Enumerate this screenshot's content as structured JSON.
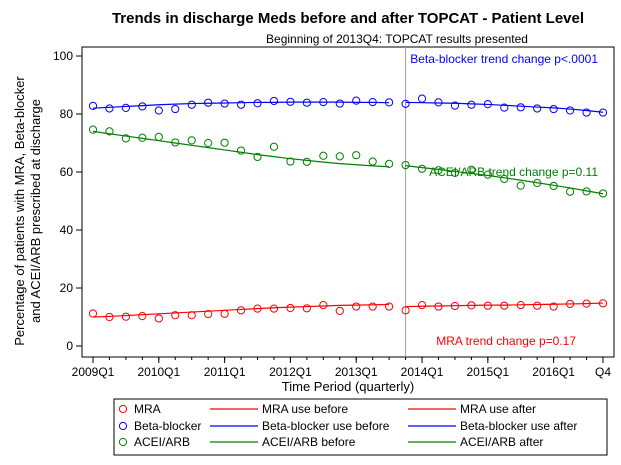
{
  "chart_data": {
    "type": "scatter",
    "title": "Trends in discharge Meds before and after TOPCAT - Patient Level",
    "subtitle": "Beginning of 2013Q4: TOPCAT results presented",
    "xlabel": "Time Period (quarterly)",
    "ylabel_line1": "Percentage of patients with MRA, Beta-blocker",
    "ylabel_line2": "and ACEI/ARB prescribed at discharge",
    "ylim": [
      0,
      100
    ],
    "yticks": [
      0,
      20,
      40,
      60,
      80,
      100
    ],
    "x_categories": [
      "2009Q1",
      "2009Q2",
      "2009Q3",
      "2009Q4",
      "2010Q1",
      "2010Q2",
      "2010Q3",
      "2010Q4",
      "2011Q1",
      "2011Q2",
      "2011Q3",
      "2011Q4",
      "2012Q1",
      "2012Q2",
      "2012Q3",
      "2012Q4",
      "2013Q1",
      "2013Q2",
      "2013Q3",
      "2013Q4",
      "2014Q1",
      "2014Q2",
      "2014Q3",
      "2014Q4",
      "2015Q1",
      "2015Q2",
      "2015Q3",
      "2015Q4",
      "2016Q1",
      "2016Q2",
      "2016Q3",
      "2016Q4"
    ],
    "xtick_labels": [
      {
        "category": "2009Q1",
        "label": "2009Q1"
      },
      {
        "category": "2010Q1",
        "label": "2010Q1"
      },
      {
        "category": "2011Q1",
        "label": "2011Q1"
      },
      {
        "category": "2012Q1",
        "label": "2012Q1"
      },
      {
        "category": "2013Q1",
        "label": "2013Q1"
      },
      {
        "category": "2014Q1",
        "label": "2014Q1"
      },
      {
        "category": "2015Q1",
        "label": "2015Q1"
      },
      {
        "category": "2016Q1",
        "label": "2016Q1"
      },
      {
        "category": "2016Q4",
        "label": "Q4"
      }
    ],
    "reference_line": {
      "category": "2013Q4",
      "color": "#a0a0a0"
    },
    "grid": false,
    "legend_position": "bottom",
    "series": [
      {
        "name": "MRA",
        "color": "#ff0000",
        "values": [
          11.2,
          10.0,
          10.1,
          10.3,
          9.5,
          10.6,
          10.6,
          11.0,
          11.1,
          12.3,
          12.9,
          12.9,
          13.1,
          13.0,
          14.1,
          12.1,
          13.6,
          13.6,
          13.6,
          12.3,
          14.1,
          13.6,
          13.8,
          14.0,
          13.9,
          13.9,
          14.1,
          13.9,
          13.6,
          14.5,
          14.6,
          14.7
        ],
        "trend_before": [
          10.0,
          10.2,
          10.5,
          10.8,
          11.1,
          11.4,
          11.7,
          12.0,
          12.3,
          12.6,
          12.9,
          13.2,
          13.4,
          13.6,
          13.8,
          14.0,
          14.1,
          14.2,
          14.3
        ],
        "trend_after": [
          13.6,
          13.7,
          13.8,
          13.9,
          14.0,
          14.1,
          14.1,
          14.2,
          14.3,
          14.4,
          14.5,
          14.6,
          14.8
        ]
      },
      {
        "name": "Beta-blocker",
        "color": "#0000ff",
        "values": [
          82.8,
          81.9,
          82.1,
          82.6,
          81.2,
          81.7,
          83.2,
          83.9,
          83.6,
          83.2,
          83.7,
          84.5,
          84.2,
          83.9,
          84.1,
          83.6,
          84.6,
          84.1,
          84.0,
          83.5,
          85.3,
          84.0,
          82.9,
          83.2,
          83.4,
          82.2,
          82.3,
          81.9,
          81.7,
          81.2,
          80.5,
          80.5
        ],
        "trend_before": [
          82.0,
          82.3,
          82.6,
          82.9,
          83.2,
          83.4,
          83.6,
          83.7,
          83.8,
          83.9,
          84.0,
          84.0,
          84.1,
          84.1,
          84.1,
          84.1,
          84.0,
          84.0,
          83.9
        ],
        "trend_after": [
          84.0,
          83.9,
          83.8,
          83.7,
          83.5,
          83.3,
          83.0,
          82.7,
          82.4,
          82.1,
          81.7,
          81.2,
          80.6
        ]
      },
      {
        "name": "ACEI/ARB",
        "color": "#008000",
        "values": [
          74.6,
          74.0,
          71.6,
          71.8,
          72.1,
          70.2,
          70.9,
          70.0,
          70.1,
          67.4,
          65.2,
          68.7,
          63.6,
          63.5,
          65.6,
          65.4,
          65.8,
          63.6,
          62.8,
          62.4,
          61.1,
          60.6,
          59.7,
          60.8,
          59.1,
          57.6,
          55.3,
          56.2,
          55.2,
          53.2,
          53.3,
          52.6
        ],
        "trend_before": [
          74.0,
          73.2,
          72.4,
          71.6,
          70.8,
          70.0,
          69.2,
          68.4,
          67.6,
          66.8,
          66.0,
          65.3,
          64.6,
          64.0,
          63.4,
          62.9,
          62.5,
          62.1,
          61.8
        ],
        "trend_after": [
          62.2,
          61.5,
          60.9,
          60.2,
          59.5,
          58.8,
          58.0,
          57.2,
          56.3,
          55.4,
          54.5,
          53.5,
          52.5
        ]
      }
    ],
    "annotations": [
      {
        "text": "Beta-blocker trend change p<.0001",
        "color": "#0000ff"
      },
      {
        "text": "ACEI/ARB trend change p=0.11",
        "color": "#008000"
      },
      {
        "text": "MRA trend change p=0.17",
        "color": "#ff0000"
      }
    ],
    "legend": [
      {
        "label": "MRA",
        "kind": "marker",
        "color": "#ff0000"
      },
      {
        "label": "MRA use before",
        "kind": "line",
        "color": "#ff0000"
      },
      {
        "label": "MRA use after",
        "kind": "line",
        "color": "#ff0000"
      },
      {
        "label": "Beta-blocker",
        "kind": "marker",
        "color": "#0000ff"
      },
      {
        "label": "Beta-blocker use before",
        "kind": "line",
        "color": "#0000ff"
      },
      {
        "label": "Beta-blocker use after",
        "kind": "line",
        "color": "#0000ff"
      },
      {
        "label": "ACEI/ARB",
        "kind": "marker",
        "color": "#008000"
      },
      {
        "label": "ACEI/ARB before",
        "kind": "line",
        "color": "#008000"
      },
      {
        "label": "ACEI/ARB after",
        "kind": "line",
        "color": "#008000"
      }
    ]
  }
}
